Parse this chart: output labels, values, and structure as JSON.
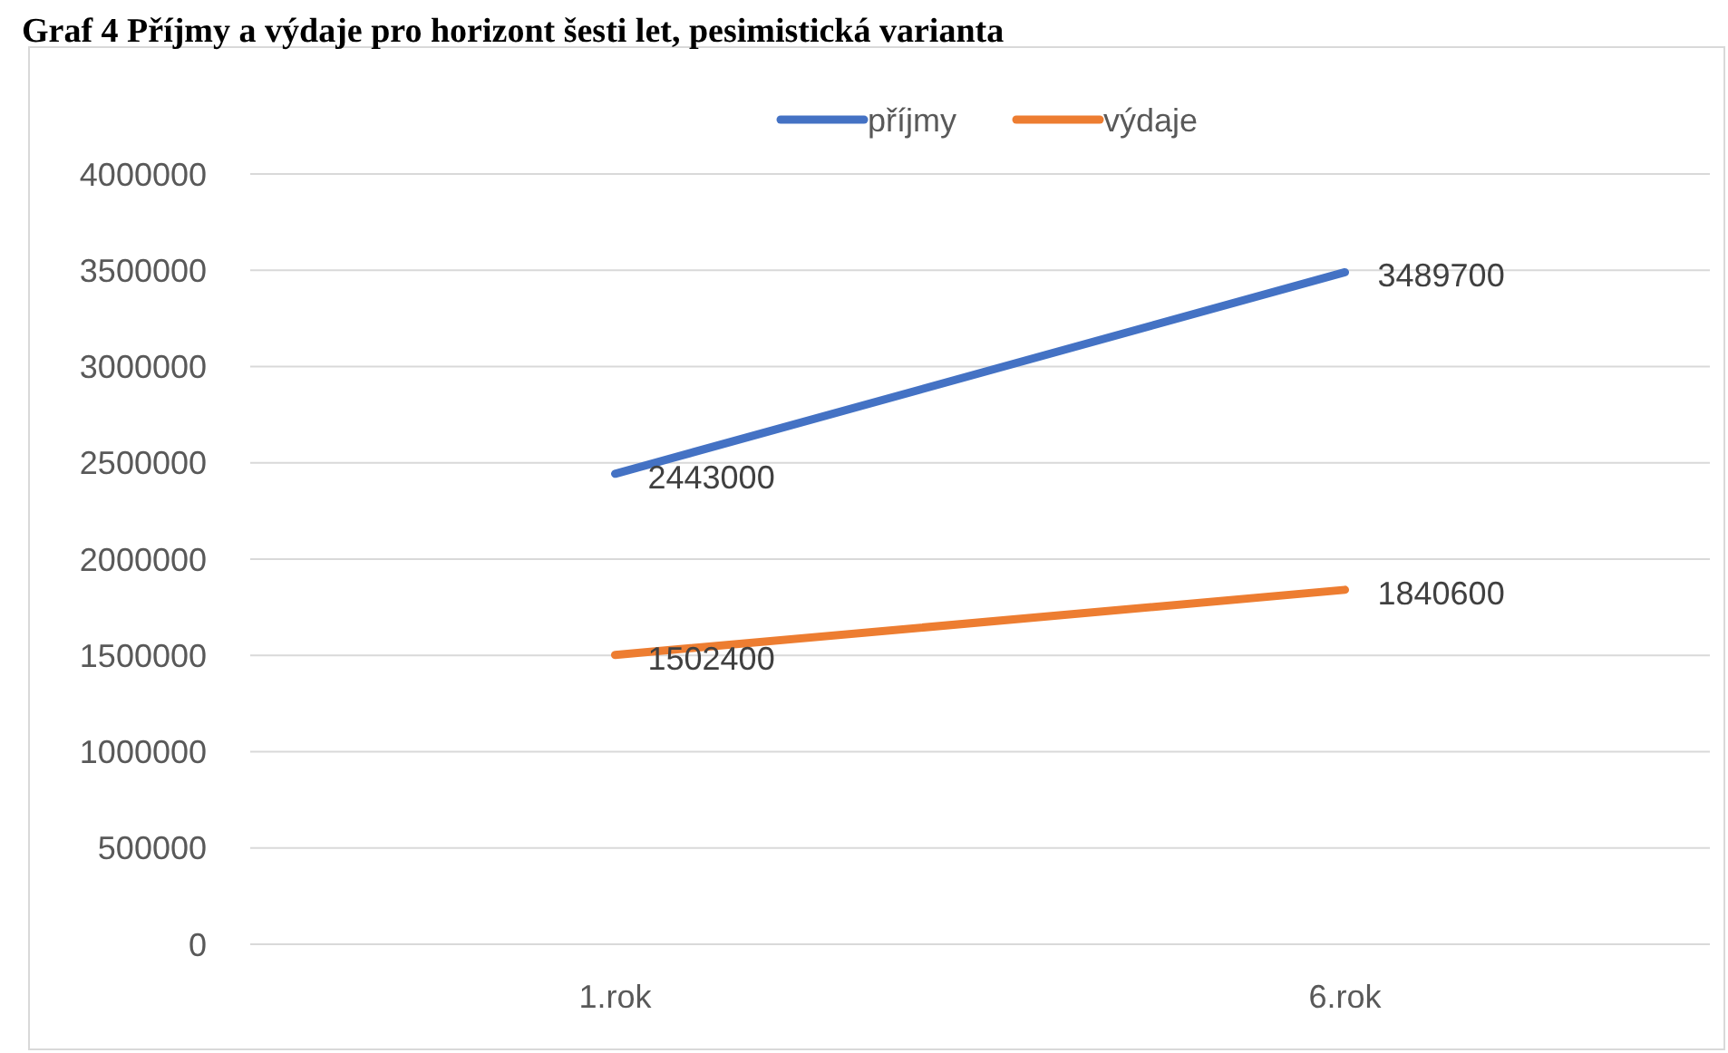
{
  "chart_data": {
    "type": "line",
    "title": "Graf 4 Příjmy a výdaje pro horizont šesti let, pesimistická varianta",
    "categories": [
      "1.rok",
      "6.rok"
    ],
    "series": [
      {
        "name": "příjmy",
        "color": "#4472c4",
        "values": [
          2443000,
          3489700
        ]
      },
      {
        "name": "výdaje",
        "color": "#ed7d31",
        "values": [
          1502400,
          1840600
        ]
      }
    ],
    "ylim": [
      0,
      4000000
    ],
    "yticks": [
      0,
      500000,
      1000000,
      1500000,
      2000000,
      2500000,
      3000000,
      3500000,
      4000000
    ],
    "grid": "y",
    "legend": "top",
    "data_labels": true,
    "marker": "none",
    "line_style": "solid"
  }
}
